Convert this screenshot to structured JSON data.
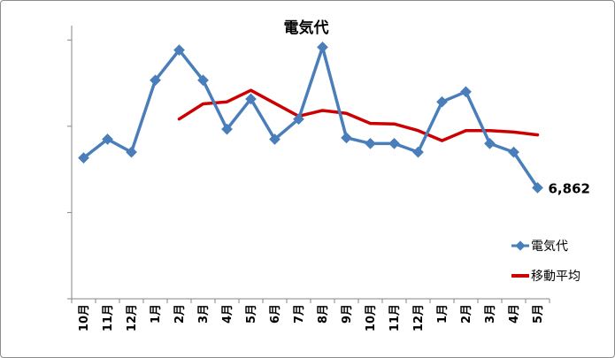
{
  "chart_data": {
    "type": "line",
    "title": "電気代",
    "categories": [
      "10月",
      "11月",
      "12月",
      "1月",
      "2月",
      "3月",
      "4月",
      "5月",
      "6月",
      "7月",
      "8月",
      "9月",
      "10月",
      "11月",
      "12月",
      "1月",
      "2月",
      "3月",
      "4月",
      "5月"
    ],
    "series": [
      {
        "name": "電気代",
        "color": "#4a7ebb",
        "marker": "diamond",
        "values": [
          7900,
          8550,
          8100,
          10600,
          11650,
          10600,
          8900,
          9950,
          8550,
          9250,
          11750,
          8600,
          8400,
          8400,
          8100,
          9850,
          10200,
          8400,
          8100,
          6862
        ]
      },
      {
        "name": "移動平均",
        "color": "#cc0000",
        "values": [
          null,
          null,
          null,
          null,
          9250,
          9780,
          9850,
          10250,
          9800,
          9350,
          9550,
          9450,
          9100,
          9080,
          8850,
          8500,
          8850,
          8850,
          8800,
          8700
        ]
      }
    ],
    "ylim": [
      3000,
      12500
    ],
    "yticks": [
      3000,
      6000,
      9000,
      12000
    ],
    "ytick_labels_shown": false,
    "grid": false,
    "data_labels": [
      {
        "series": 0,
        "index": 19,
        "text": "6,862"
      }
    ],
    "legend": {
      "position": "right",
      "entries": [
        "電気代",
        "移動平均"
      ]
    }
  }
}
